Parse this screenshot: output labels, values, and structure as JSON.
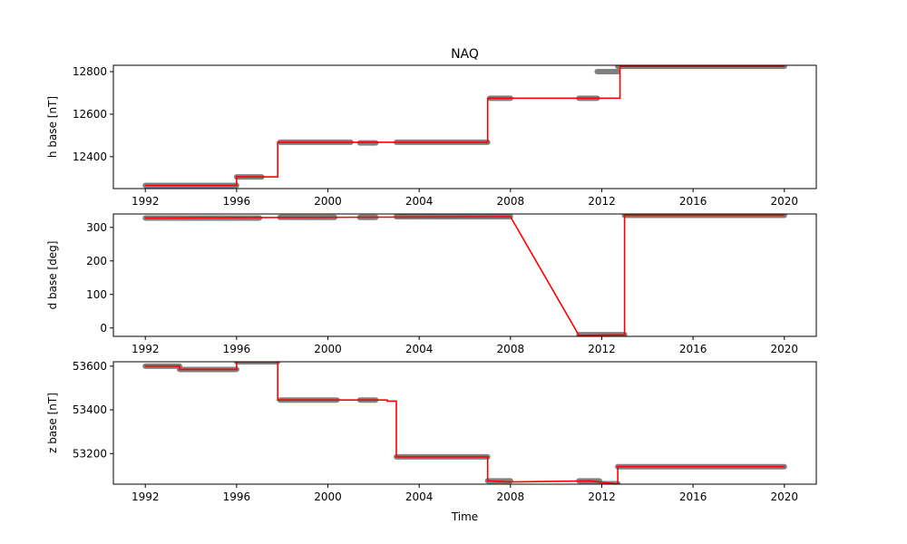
{
  "title": "NAQ",
  "xlabel": "Time",
  "colors": {
    "fit": "#ff0000",
    "obs": "#808080",
    "frame": "#000000"
  },
  "chart_data": [
    {
      "type": "line",
      "ylabel": "h base [nT]",
      "xlim": [
        1990.6,
        2021.4
      ],
      "ylim": [
        12250,
        12830
      ],
      "xticks": [
        1992,
        1996,
        2000,
        2004,
        2008,
        2012,
        2016,
        2020
      ],
      "yticks": [
        12400,
        12600,
        12800
      ],
      "series": [
        {
          "role": "observations",
          "segments": [
            {
              "x": [
                1992.0,
                1996.0
              ],
              "y": 12265
            },
            {
              "x": [
                1996.0,
                1997.1
              ],
              "y": 12305
            },
            {
              "x": [
                1997.9,
                2001.0
              ],
              "y": 12468
            },
            {
              "x": [
                2001.4,
                2002.1
              ],
              "y": 12465
            },
            {
              "x": [
                2003.0,
                2007.0
              ],
              "y": 12468
            },
            {
              "x": [
                2007.1,
                2008.0
              ],
              "y": 12675
            },
            {
              "x": [
                2011.0,
                2011.8
              ],
              "y": 12675
            },
            {
              "x": [
                2011.8,
                2012.7
              ],
              "y": 12800
            },
            {
              "x": [
                2012.7,
                2020.0
              ],
              "y": 12825
            }
          ]
        },
        {
          "role": "fit",
          "x": [
            1992.0,
            1996.0,
            1996.0,
            1997.8,
            1997.8,
            2007.0,
            2007.0,
            2012.8,
            2012.8,
            2020.0
          ],
          "y": [
            12265,
            12265,
            12305,
            12305,
            12468,
            12468,
            12675,
            12675,
            12825,
            12825
          ]
        }
      ]
    },
    {
      "type": "line",
      "ylabel": "d base [deg]",
      "xlim": [
        1990.6,
        2021.4
      ],
      "ylim": [
        -25,
        340
      ],
      "xticks": [
        1992,
        1996,
        2000,
        2004,
        2008,
        2012,
        2016,
        2020
      ],
      "yticks": [
        0,
        100,
        200,
        300
      ],
      "series": [
        {
          "role": "observations",
          "segments": [
            {
              "x": [
                1992.0,
                1997.0
              ],
              "y": 328
            },
            {
              "x": [
                1997.9,
                2000.3
              ],
              "y": 330
            },
            {
              "x": [
                2001.4,
                2002.1
              ],
              "y": 330
            },
            {
              "x": [
                2003.0,
                2008.0
              ],
              "y": 332
            },
            {
              "x": [
                2011.0,
                2013.0
              ],
              "y": -20
            },
            {
              "x": [
                2013.0,
                2020.0
              ],
              "y": 336
            }
          ]
        },
        {
          "role": "fit",
          "x": [
            1992.0,
            2008.0,
            2011.0,
            2013.0,
            2013.0,
            2020.0
          ],
          "y": [
            328,
            332,
            -22,
            -20,
            336,
            336
          ]
        }
      ]
    },
    {
      "type": "line",
      "ylabel": "z base [nT]",
      "xlim": [
        1990.6,
        2021.4
      ],
      "ylim": [
        53060,
        53620
      ],
      "xticks": [
        1992,
        1996,
        2000,
        2004,
        2008,
        2012,
        2016,
        2020
      ],
      "yticks": [
        53200,
        53400,
        53600
      ],
      "series": [
        {
          "role": "observations",
          "segments": [
            {
              "x": [
                1992.0,
                1993.5
              ],
              "y": 53600
            },
            {
              "x": [
                1993.5,
                1996.0
              ],
              "y": 53585
            },
            {
              "x": [
                1996.0,
                1997.8
              ],
              "y": 53620
            },
            {
              "x": [
                1997.9,
                2000.4
              ],
              "y": 53445
            },
            {
              "x": [
                2001.4,
                2002.1
              ],
              "y": 53445
            },
            {
              "x": [
                2003.0,
                2007.0
              ],
              "y": 53185
            },
            {
              "x": [
                2007.0,
                2008.0
              ],
              "y": 53075
            },
            {
              "x": [
                2011.0,
                2011.9
              ],
              "y": 53075
            },
            {
              "x": [
                2012.0,
                2012.7
              ],
              "y": 53062
            },
            {
              "x": [
                2012.7,
                2020.0
              ],
              "y": 53140
            }
          ]
        },
        {
          "role": "fit",
          "x": [
            1992.0,
            1993.5,
            1993.5,
            1996.0,
            1996.0,
            1997.8,
            1997.8,
            2002.6,
            2002.6,
            2003.0,
            2003.0,
            2007.0,
            2007.0,
            2008.0,
            2011.5,
            2012.7,
            2012.7,
            2020.0
          ],
          "y": [
            53600,
            53600,
            53585,
            53585,
            53620,
            53620,
            53445,
            53445,
            53440,
            53440,
            53185,
            53185,
            53075,
            53070,
            53075,
            53060,
            53140,
            53140
          ]
        }
      ]
    }
  ]
}
